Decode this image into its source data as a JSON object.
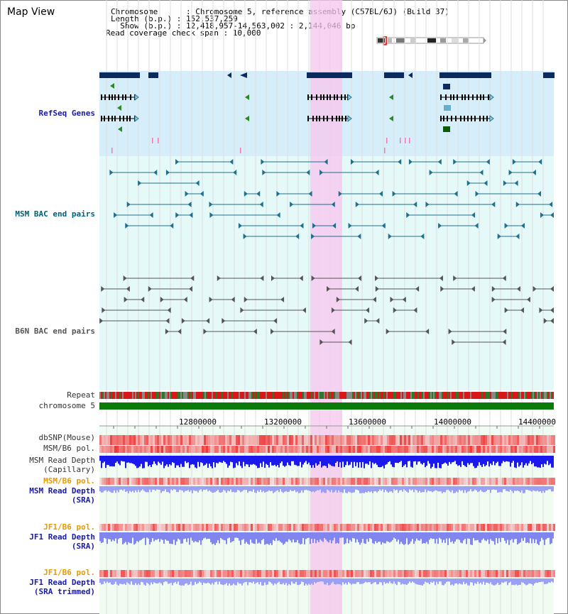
{
  "header": {
    "title": "Map View",
    "info_lines": [
      "Chromosome      : Chromosome 5, reference assembly (C57BL/6J) (Build 37)",
      "Length (b.p.) : 152,537,259",
      "  Show (b.p.) : 12,418,957-14,563,002 : 2,144,046 bp",
      "Read coverage check span : 10,000"
    ]
  },
  "tracks": {
    "refseq": "RefSeq Genes",
    "msm_bac": "MSM BAC end pairs",
    "b6n_bac": "B6N BAC end pairs",
    "repeat": "Repeat",
    "chromosome": "chromosome 5",
    "dbsnp": "dbSNP(Mouse)",
    "msm_b6_pol": "MSM/B6 pol.",
    "msm_depth_cap_1": "MSM Read Depth",
    "msm_depth_cap_2": "(Capillary)",
    "msm_b6_pol_sra": "MSM/B6 pol.",
    "msm_depth_sra_1": "MSM Read Depth",
    "msm_depth_sra_2": "(SRA)",
    "jf1_pol": "JF1/B6 pol.",
    "jf1_depth_1": "JF1 Read Depth",
    "jf1_depth_2": "(SRA)",
    "jf1_pol_trim": "JF1/B6 pol.",
    "jf1_trim_1": "JF1 Read Depth",
    "jf1_trim_2": "(SRA trimmed)"
  },
  "axis": {
    "ticks": [
      "12800000",
      "13200000",
      "13600000",
      "14000000",
      "14400000"
    ]
  },
  "colors": {
    "refseq_bg": "#d6eef9",
    "bac_bg": "#e6f9f9",
    "highlight": "#f7c6ee",
    "gene_dark": "#0b2a5e",
    "msm_line": "#1f6f8f",
    "b6n_line": "#555555",
    "chromosome": "#0a7a0a"
  }
}
